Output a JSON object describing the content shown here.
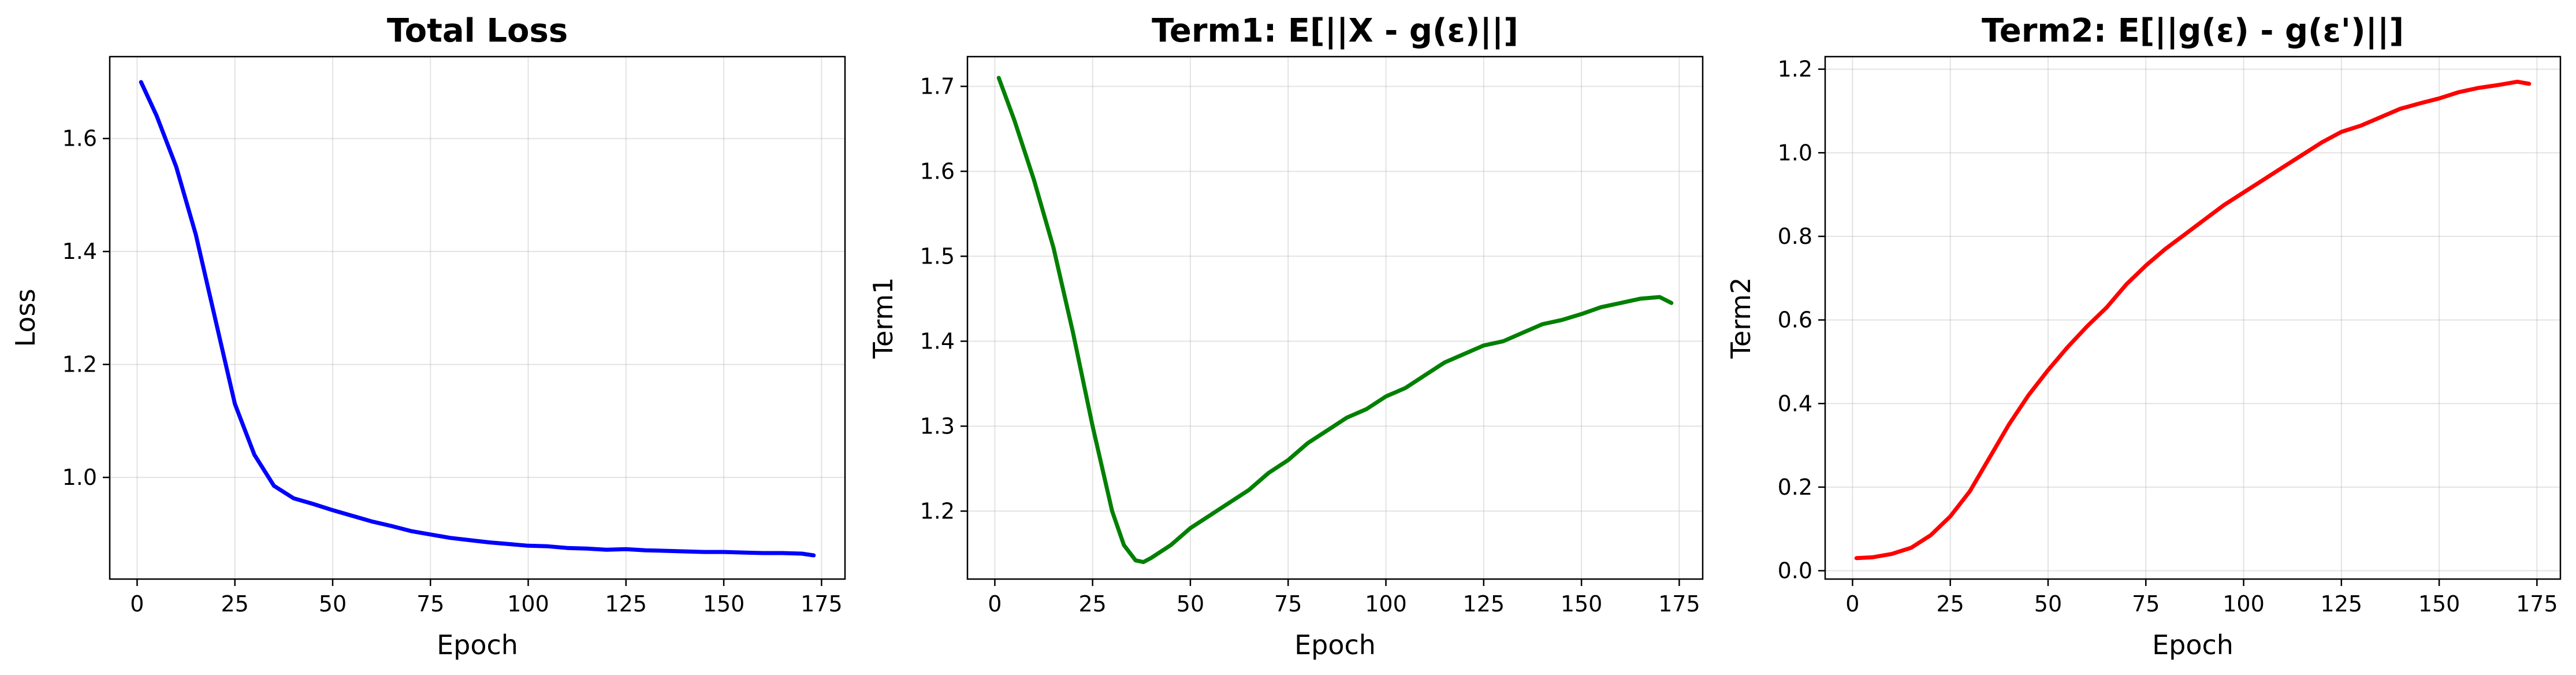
{
  "chart_data": [
    {
      "type": "line",
      "title": "Total Loss",
      "xlabel": "Epoch",
      "ylabel": "Loss",
      "xlim": [
        -7,
        181
      ],
      "ylim": [
        0.82,
        1.745
      ],
      "xticks": [
        0,
        25,
        50,
        75,
        100,
        125,
        150,
        175
      ],
      "yticks": [
        1.0,
        1.2,
        1.4,
        1.6
      ],
      "ytick_labels": [
        "1.0",
        "1.2",
        "1.4",
        "1.6"
      ],
      "grid": true,
      "color": "#0000ff",
      "series": [
        {
          "x": [
            1,
            5,
            10,
            15,
            20,
            25,
            30,
            35,
            40,
            45,
            50,
            55,
            60,
            65,
            70,
            75,
            80,
            85,
            90,
            95,
            100,
            105,
            110,
            115,
            120,
            125,
            130,
            135,
            140,
            145,
            150,
            155,
            160,
            165,
            170,
            173
          ],
          "y": [
            1.7,
            1.64,
            1.55,
            1.43,
            1.28,
            1.13,
            1.04,
            0.985,
            0.963,
            0.953,
            0.942,
            0.932,
            0.922,
            0.914,
            0.905,
            0.899,
            0.893,
            0.889,
            0.885,
            0.882,
            0.879,
            0.878,
            0.875,
            0.874,
            0.872,
            0.873,
            0.871,
            0.87,
            0.869,
            0.868,
            0.868,
            0.867,
            0.866,
            0.866,
            0.865,
            0.862
          ]
        }
      ]
    },
    {
      "type": "line",
      "title": "Term1: E[||X - g(ε)||]",
      "xlabel": "Epoch",
      "ylabel": "Term1",
      "xlim": [
        -7,
        181
      ],
      "ylim": [
        1.12,
        1.735
      ],
      "xticks": [
        0,
        25,
        50,
        75,
        100,
        125,
        150,
        175
      ],
      "yticks": [
        1.2,
        1.3,
        1.4,
        1.5,
        1.6,
        1.7
      ],
      "ytick_labels": [
        "1.2",
        "1.3",
        "1.4",
        "1.5",
        "1.6",
        "1.7"
      ],
      "grid": true,
      "color": "#008000",
      "series": [
        {
          "x": [
            1,
            5,
            10,
            15,
            20,
            25,
            30,
            33,
            36,
            38,
            40,
            45,
            50,
            55,
            60,
            65,
            70,
            75,
            80,
            85,
            90,
            95,
            100,
            105,
            110,
            115,
            120,
            125,
            130,
            135,
            140,
            145,
            150,
            155,
            160,
            165,
            170,
            173
          ],
          "y": [
            1.71,
            1.66,
            1.59,
            1.51,
            1.41,
            1.3,
            1.2,
            1.16,
            1.142,
            1.14,
            1.145,
            1.16,
            1.18,
            1.195,
            1.21,
            1.225,
            1.245,
            1.26,
            1.28,
            1.295,
            1.31,
            1.32,
            1.335,
            1.345,
            1.36,
            1.375,
            1.385,
            1.395,
            1.4,
            1.41,
            1.42,
            1.425,
            1.432,
            1.44,
            1.445,
            1.45,
            1.452,
            1.445
          ]
        }
      ]
    },
    {
      "type": "line",
      "title": "Term2: E[||g(ε) - g(ε')||]",
      "xlabel": "Epoch",
      "ylabel": "Term2",
      "xlim": [
        -7,
        181
      ],
      "ylim": [
        -0.02,
        1.23
      ],
      "xticks": [
        0,
        25,
        50,
        75,
        100,
        125,
        150,
        175
      ],
      "yticks": [
        0.0,
        0.2,
        0.4,
        0.6,
        0.8,
        1.0,
        1.2
      ],
      "ytick_labels": [
        "0.0",
        "0.2",
        "0.4",
        "0.6",
        "0.8",
        "1.0",
        "1.2"
      ],
      "grid": true,
      "color": "#ff0000",
      "series": [
        {
          "x": [
            1,
            5,
            10,
            15,
            20,
            25,
            30,
            35,
            40,
            45,
            50,
            55,
            60,
            65,
            70,
            75,
            80,
            85,
            90,
            95,
            100,
            105,
            110,
            115,
            120,
            125,
            130,
            135,
            140,
            145,
            150,
            155,
            160,
            165,
            170,
            173
          ],
          "y": [
            0.03,
            0.032,
            0.04,
            0.055,
            0.085,
            0.13,
            0.19,
            0.27,
            0.35,
            0.42,
            0.48,
            0.535,
            0.585,
            0.63,
            0.685,
            0.73,
            0.77,
            0.805,
            0.84,
            0.875,
            0.905,
            0.935,
            0.965,
            0.995,
            1.025,
            1.05,
            1.065,
            1.085,
            1.105,
            1.118,
            1.13,
            1.145,
            1.155,
            1.162,
            1.17,
            1.165
          ]
        }
      ]
    }
  ]
}
